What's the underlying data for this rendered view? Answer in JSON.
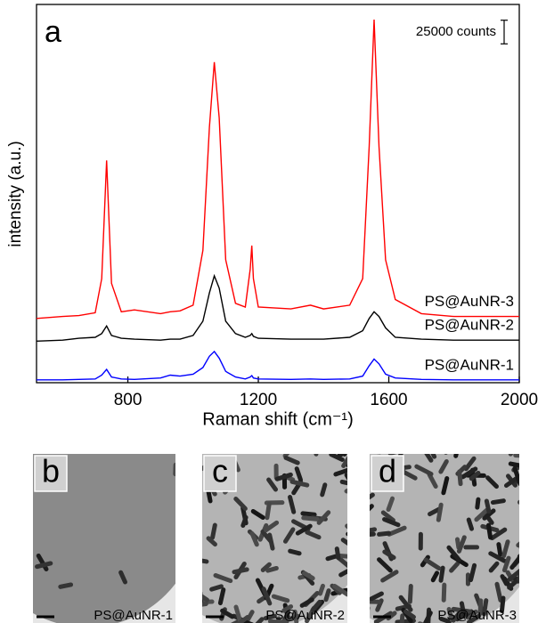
{
  "chart_data": {
    "type": "line",
    "panel_label": "a",
    "x_label": "Raman shift (cm⁻¹)",
    "y_label": "intensity (a.u.)",
    "xlim": [
      520,
      2000
    ],
    "xticks": [
      800,
      1200,
      1600,
      2000
    ],
    "ylim": [
      0,
      400000
    ],
    "scale_bar": {
      "label": "25000 counts",
      "value": 25000
    },
    "x": [
      520,
      600,
      650,
      700,
      720,
      735,
      750,
      780,
      820,
      900,
      930,
      960,
      1000,
      1030,
      1050,
      1065,
      1080,
      1100,
      1130,
      1160,
      1175,
      1180,
      1185,
      1200,
      1300,
      1360,
      1400,
      1480,
      1520,
      1540,
      1555,
      1570,
      1590,
      1620,
      1700,
      1800,
      1900,
      2000
    ],
    "series": [
      {
        "name": "PS@AuNR-3",
        "color": "#ff0000",
        "values": [
          68000,
          70000,
          71000,
          74000,
          110000,
          235000,
          105000,
          75000,
          77000,
          73000,
          75000,
          76000,
          82000,
          140000,
          270000,
          339000,
          280000,
          130000,
          84000,
          80000,
          120000,
          145000,
          110000,
          80000,
          78000,
          82000,
          78000,
          82000,
          110000,
          250000,
          384000,
          250000,
          130000,
          88000,
          73000,
          70000,
          70000,
          70000
        ]
      },
      {
        "name": "PS@AuNR-2",
        "color": "#000000",
        "values": [
          44000,
          45000,
          47000,
          48000,
          52000,
          60000,
          50000,
          47000,
          46000,
          45000,
          46000,
          46000,
          50000,
          65000,
          95000,
          113000,
          100000,
          65000,
          52000,
          48000,
          50000,
          52000,
          49000,
          47000,
          46000,
          46000,
          46000,
          48000,
          55000,
          68000,
          75000,
          70000,
          58000,
          48000,
          46000,
          45000,
          45000,
          45000
        ]
      },
      {
        "name": "PS@AuNR-1",
        "color": "#0000ff",
        "values": [
          3000,
          3000,
          3500,
          4000,
          8000,
          14000,
          6000,
          4000,
          3500,
          5000,
          8000,
          7000,
          9000,
          16000,
          28000,
          33000,
          26000,
          12000,
          6000,
          4000,
          6000,
          7500,
          5000,
          4000,
          3500,
          4000,
          3500,
          4000,
          7000,
          18000,
          25000,
          20000,
          9000,
          5000,
          3500,
          3000,
          3000,
          3000
        ]
      }
    ]
  },
  "images": [
    {
      "label": "b",
      "caption": "PS@AuNR-1"
    },
    {
      "label": "c",
      "caption": "PS@AuNR-2"
    },
    {
      "label": "d",
      "caption": "PS@AuNR-3"
    }
  ]
}
